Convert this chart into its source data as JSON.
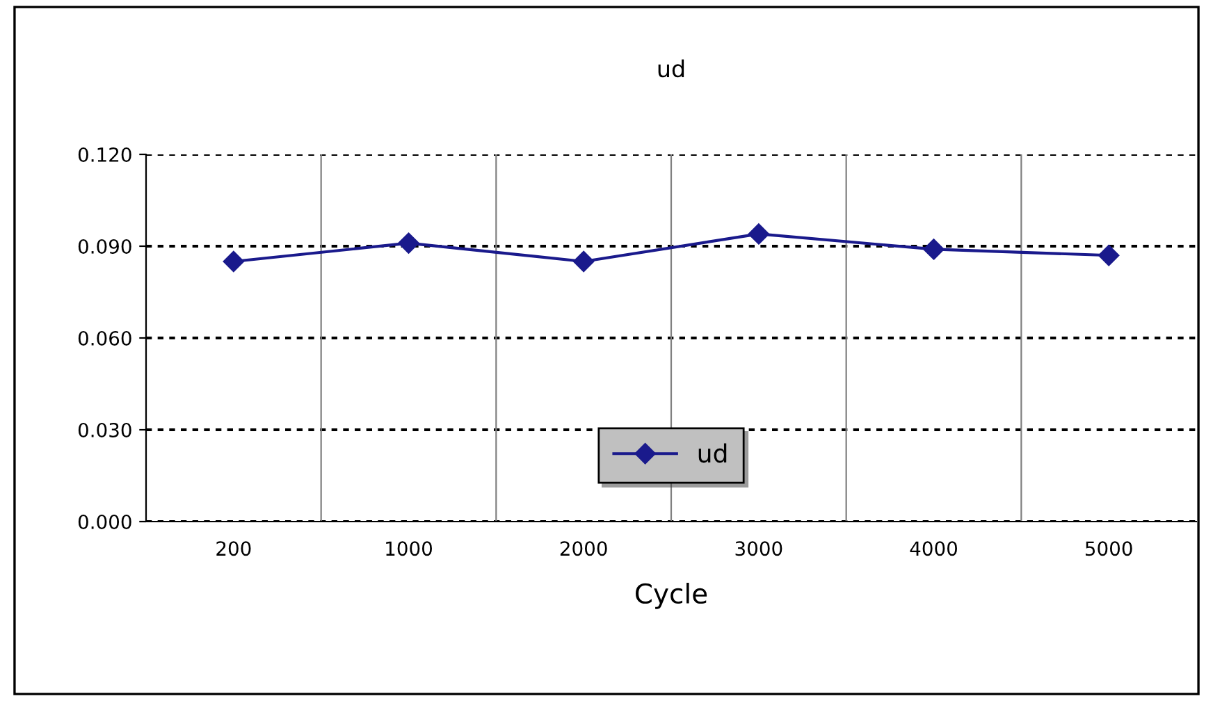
{
  "chart_data": {
    "type": "line",
    "title": "ud",
    "xlabel": "Cycle",
    "categories": [
      "200",
      "1000",
      "2000",
      "3000",
      "4000",
      "5000"
    ],
    "series": [
      {
        "name": "ud",
        "color": "#1a1a8c",
        "values": [
          0.085,
          0.091,
          0.085,
          0.094,
          0.089,
          0.087
        ]
      }
    ],
    "ylim": [
      0.0,
      0.12
    ],
    "yticks": [
      {
        "value": 0.0,
        "label": "0.000"
      },
      {
        "value": 0.03,
        "label": "0.030"
      },
      {
        "value": 0.06,
        "label": "0.060"
      },
      {
        "value": 0.09,
        "label": "0.090"
      },
      {
        "value": 0.12,
        "label": "0.120"
      }
    ],
    "grid": true,
    "legend": "bottom",
    "marker": "diamond",
    "line_style": "solid"
  }
}
